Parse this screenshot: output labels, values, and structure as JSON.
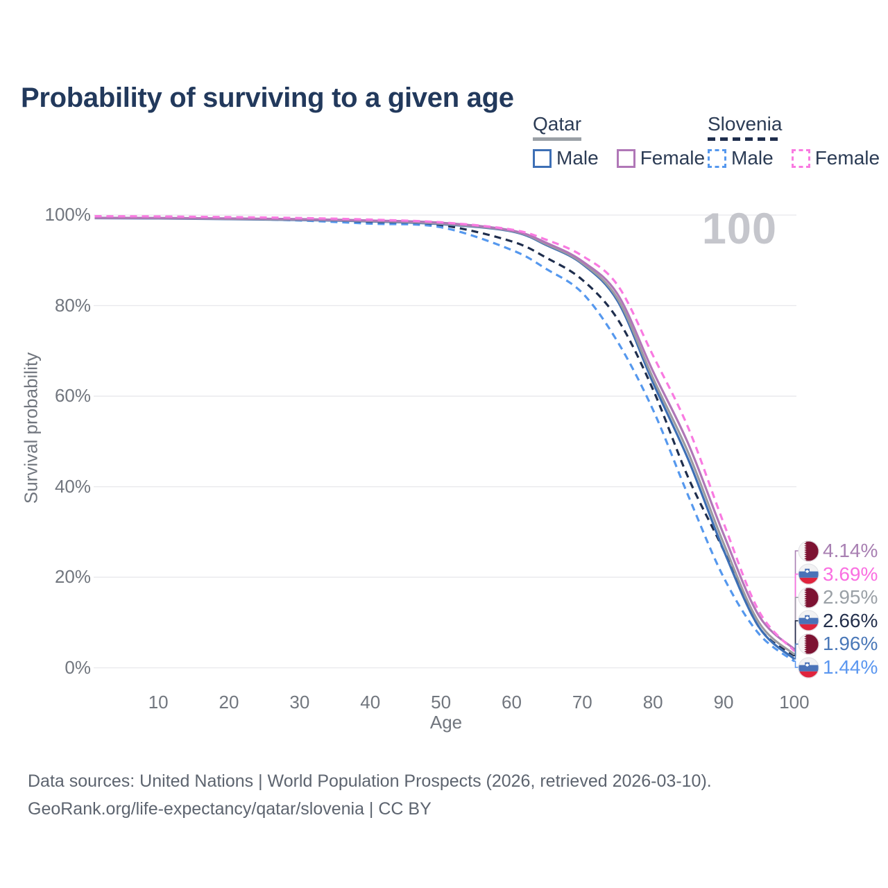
{
  "title": "Probability of surviving to a given age",
  "annotation_100": "100",
  "legend": {
    "groups": [
      {
        "label": "Qatar",
        "line_style": "solid",
        "underline_color": "#9aa0a6",
        "items": [
          {
            "label": "Male",
            "color": "#3d6fb5",
            "dashed": false
          },
          {
            "label": "Female",
            "color": "#b077b7",
            "dashed": false
          }
        ]
      },
      {
        "label": "Slovenia",
        "line_style": "dashed",
        "underline_color": "#1f2e4d",
        "items": [
          {
            "label": "Male",
            "color": "#5598ee",
            "dashed": true
          },
          {
            "label": "Female",
            "color": "#f97ae1",
            "dashed": true
          }
        ]
      }
    ]
  },
  "chart_data": {
    "type": "line",
    "title": "Probability of surviving to a given age",
    "xlabel": "Age",
    "ylabel": "Survival probability",
    "xlim": [
      0,
      100
    ],
    "ylim": [
      0,
      100
    ],
    "grid": "horizontal",
    "x_ticks": [
      10,
      20,
      30,
      40,
      50,
      60,
      70,
      80,
      90,
      100
    ],
    "y_ticks": [
      {
        "value": 0,
        "label": "0%"
      },
      {
        "value": 20,
        "label": "20%"
      },
      {
        "value": 40,
        "label": "40%"
      },
      {
        "value": 60,
        "label": "60%"
      },
      {
        "value": 80,
        "label": "80%"
      },
      {
        "value": 100,
        "label": "100%"
      }
    ],
    "x": [
      1,
      10,
      20,
      30,
      40,
      50,
      60,
      65,
      70,
      75,
      80,
      85,
      90,
      95,
      100
    ],
    "series": [
      {
        "name": "Qatar Male",
        "country": "qatar",
        "sex": "male",
        "color": "#3d6fb5",
        "dashed": false,
        "final_label": "1.96%",
        "values": [
          99.3,
          99.25,
          99.1,
          98.9,
          98.6,
          98.0,
          96.4,
          93.3,
          89.2,
          81.0,
          63.0,
          46.0,
          26.0,
          9.0,
          1.96
        ]
      },
      {
        "name": "Qatar Female",
        "country": "qatar",
        "sex": "female",
        "color": "#b077b7",
        "dashed": false,
        "final_label": "4.14%",
        "values": [
          99.4,
          99.35,
          99.25,
          99.1,
          98.8,
          98.3,
          96.6,
          93.8,
          89.8,
          82.5,
          65.5,
          49.5,
          29.5,
          11.5,
          4.14
        ]
      },
      {
        "name": "Qatar",
        "country": "qatar",
        "sex": "both",
        "color": "#9b9ba1",
        "dashed": false,
        "final_label": "2.95%",
        "values": [
          99.35,
          99.3,
          99.15,
          99.0,
          98.7,
          98.1,
          96.5,
          93.5,
          89.4,
          81.5,
          64.0,
          47.5,
          27.5,
          10.0,
          2.95
        ]
      },
      {
        "name": "Slovenia Male",
        "country": "slovenia",
        "sex": "male",
        "color": "#5598ee",
        "dashed": true,
        "final_label": "1.44%",
        "values": [
          99.5,
          99.45,
          99.2,
          98.8,
          98.1,
          97.3,
          92.3,
          88.0,
          82.8,
          72.0,
          57.0,
          38.0,
          20.0,
          7.5,
          1.44
        ]
      },
      {
        "name": "Slovenia Female",
        "country": "slovenia",
        "sex": "female",
        "color": "#f97ae1",
        "dashed": true,
        "final_label": "3.69%",
        "values": [
          99.75,
          99.7,
          99.55,
          99.35,
          99.0,
          98.4,
          96.8,
          94.5,
          91.0,
          84.5,
          69.0,
          53.0,
          32.0,
          12.5,
          3.69
        ]
      },
      {
        "name": "Slovenia",
        "country": "slovenia",
        "sex": "both",
        "color": "#1f2e4d",
        "dashed": true,
        "final_label": "2.66%",
        "values": [
          99.6,
          99.55,
          99.35,
          99.05,
          98.5,
          97.8,
          94.2,
          90.5,
          85.7,
          77.0,
          61.5,
          42.0,
          26.0,
          9.0,
          2.66
        ]
      }
    ]
  },
  "end_labels": [
    {
      "label": "4.14%",
      "series": "Qatar Female",
      "flag": "qatar",
      "color": "#a87fb2"
    },
    {
      "label": "3.69%",
      "series": "Slovenia Female",
      "flag": "slovenia",
      "color": "#fa6fe1"
    },
    {
      "label": "2.95%",
      "series": "Qatar",
      "flag": "qatar",
      "color": "#9aa0a6"
    },
    {
      "label": "2.66%",
      "series": "Slovenia",
      "flag": "slovenia",
      "color": "#232f4b"
    },
    {
      "label": "1.96%",
      "series": "Qatar Male",
      "flag": "qatar",
      "color": "#4a78b8"
    },
    {
      "label": "1.44%",
      "series": "Slovenia Male",
      "flag": "slovenia",
      "color": "#5b97f0"
    }
  ],
  "footer": {
    "line1": "Data sources: United Nations | World Population Prospects (2026, retrieved 2026-03-10).",
    "line2": "GeoRank.org/life-expectancy/qatar/slovenia | CC BY"
  }
}
